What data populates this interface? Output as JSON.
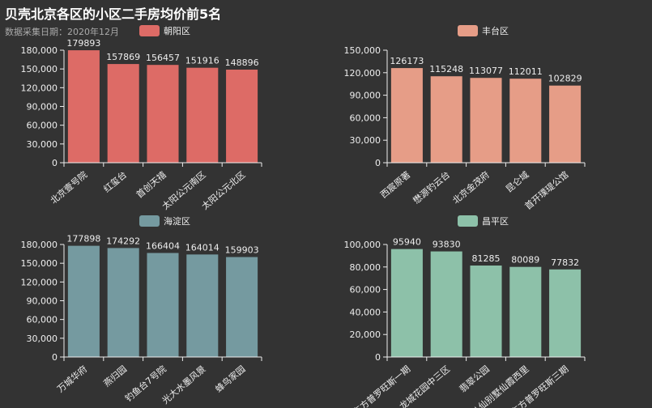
{
  "title": "贝壳北京各区的小区二手房均价前5名",
  "subtitle": "数据采集日期：2020年12月",
  "chart_data": [
    {
      "type": "bar",
      "legend": "朝阳区",
      "color": "#dd6b66",
      "categories": [
        "北京壹号院",
        "红玺台",
        "首创天禧",
        "太阳公元南区",
        "太阳公元北区"
      ],
      "values": [
        179893,
        157869,
        156457,
        151916,
        148896
      ],
      "ylim": [
        0,
        180000
      ],
      "yticks": [
        0,
        30000,
        60000,
        90000,
        120000,
        150000,
        180000
      ],
      "ytick_labels": [
        "0",
        "30,000",
        "60,000",
        "90,000",
        "120,000",
        "150,000",
        "180,000"
      ]
    },
    {
      "type": "bar",
      "legend": "丰台区",
      "color": "#e69d87",
      "categories": [
        "西宸原著",
        "懋源钓云台",
        "北京金茂府",
        "昆仑域",
        "首开璞瑅公馆"
      ],
      "values": [
        126173,
        115248,
        113077,
        112011,
        102829
      ],
      "ylim": [
        0,
        150000
      ],
      "yticks": [
        0,
        30000,
        60000,
        90000,
        120000,
        150000
      ],
      "ytick_labels": [
        "0",
        "30,000",
        "60,000",
        "90,000",
        "120,000",
        "150,000"
      ]
    },
    {
      "type": "bar",
      "legend": "海淀区",
      "color": "#759aa0",
      "categories": [
        "万城华府",
        "燕归园",
        "钓鱼台7号院",
        "光大水墨风景",
        "蜂鸟家园"
      ],
      "values": [
        177898,
        174292,
        166404,
        164014,
        159903
      ],
      "ylim": [
        0,
        180000
      ],
      "yticks": [
        0,
        30000,
        60000,
        90000,
        120000,
        150000,
        180000
      ],
      "ytick_labels": [
        "0",
        "30,000",
        "60,000",
        "90,000",
        "120,000",
        "150,000",
        "180,000"
      ]
    },
    {
      "type": "bar",
      "legend": "昌平区",
      "color": "#8dc1a9",
      "categories": [
        "东方普罗旺斯一期",
        "龙城花园中三区",
        "翡翠公园",
        "八仙别墅仙霞西里",
        "东方普罗旺斯三期"
      ],
      "values": [
        95940,
        93830,
        81285,
        80089,
        77832
      ],
      "ylim": [
        0,
        100000
      ],
      "yticks": [
        0,
        20000,
        40000,
        60000,
        80000,
        100000
      ],
      "ytick_labels": [
        "0",
        "20,000",
        "40,000",
        "60,000",
        "80,000",
        "100,000"
      ]
    }
  ]
}
